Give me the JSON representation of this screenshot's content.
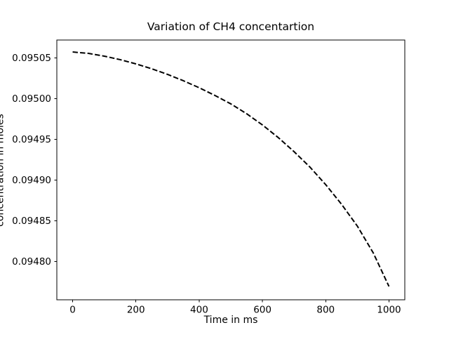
{
  "figure": {
    "background": "#ffffff",
    "text_color": "#000000"
  },
  "chart_data": {
    "type": "line",
    "title": "Variation of CH4 concentartion",
    "xlabel": "Time in ms",
    "ylabel": "concentration in moles",
    "grid": false,
    "legend": null,
    "xlim": [
      -50,
      1050
    ],
    "ylim": [
      0.094753,
      0.095072
    ],
    "xticks": {
      "values": [
        0,
        200,
        400,
        600,
        800,
        1000
      ],
      "labels": [
        "0",
        "200",
        "400",
        "600",
        "800",
        "1000"
      ]
    },
    "yticks": {
      "values": [
        0.0948,
        0.09485,
        0.0949,
        0.09495,
        0.095,
        0.09505
      ],
      "labels": [
        "0.09480",
        "0.09485",
        "0.09490",
        "0.09495",
        "0.09500",
        "0.09505"
      ]
    },
    "series": [
      {
        "name": "CH4 concentration",
        "color": "#000000",
        "linestyle": "dashed",
        "linewidth": 2,
        "x": [
          0,
          50,
          100,
          150,
          200,
          250,
          300,
          350,
          400,
          450,
          500,
          550,
          600,
          650,
          700,
          750,
          800,
          850,
          900,
          950,
          1000
        ],
        "y": [
          0.0950573,
          0.0950556,
          0.0950522,
          0.0950479,
          0.0950427,
          0.0950367,
          0.0950298,
          0.095022,
          0.0950134,
          0.0950039,
          0.0949936,
          0.0949815,
          0.0949677,
          0.0949522,
          0.0949349,
          0.094916,
          0.0948944,
          0.0948703,
          0.0948435,
          0.0948108,
          0.0947694
        ]
      }
    ]
  }
}
